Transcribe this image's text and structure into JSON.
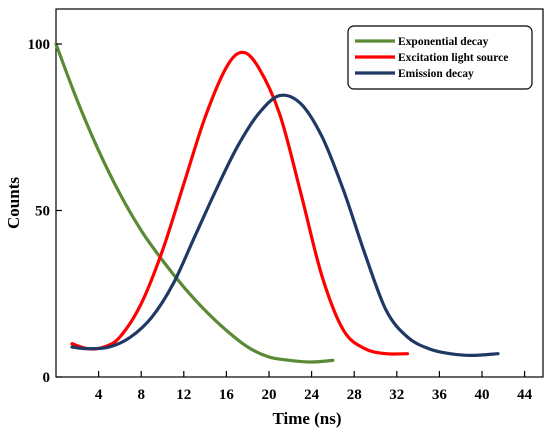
{
  "chart_data": {
    "type": "line",
    "xlabel": "Time (ns)",
    "ylabel": "Counts",
    "xlim": [
      0,
      47
    ],
    "ylim": [
      0,
      108
    ],
    "xticks": [
      4,
      8,
      12,
      16,
      20,
      24,
      28,
      32,
      36,
      40,
      44
    ],
    "yticks": [
      0,
      50,
      100
    ],
    "grid": false,
    "legend_position": "top-right",
    "series": [
      {
        "name": "Exponential decay",
        "color": "#5a8a35",
        "x": [
          0,
          2,
          4,
          6,
          8,
          10,
          12,
          14,
          16,
          18,
          20,
          22,
          24,
          26
        ],
        "y": [
          100,
          83,
          68,
          55,
          44,
          35,
          27,
          20,
          14,
          9,
          6,
          5,
          4.5,
          5
        ]
      },
      {
        "name": "Excitation light source",
        "color": "#ff0000",
        "x": [
          1.5,
          3,
          4.5,
          6,
          8,
          10,
          12,
          14,
          16,
          17.5,
          19,
          21,
          23,
          25,
          27,
          29,
          31,
          33
        ],
        "y": [
          10,
          8.5,
          9,
          12,
          22,
          38,
          58,
          78,
          93,
          97.5,
          93,
          79,
          55,
          30,
          14,
          8.5,
          7,
          7
        ]
      },
      {
        "name": "Emission decay",
        "color": "#1f3864",
        "x": [
          1.5,
          3,
          5,
          7,
          9,
          11,
          13,
          15,
          17,
          19,
          21,
          23,
          25,
          27,
          29,
          31,
          33,
          35,
          37,
          39,
          41.5
        ],
        "y": [
          9,
          8.5,
          9,
          12,
          18,
          28,
          42,
          56,
          69,
          79,
          84.5,
          82,
          72,
          56,
          37,
          20,
          12,
          8.5,
          7,
          6.5,
          7
        ]
      }
    ]
  }
}
